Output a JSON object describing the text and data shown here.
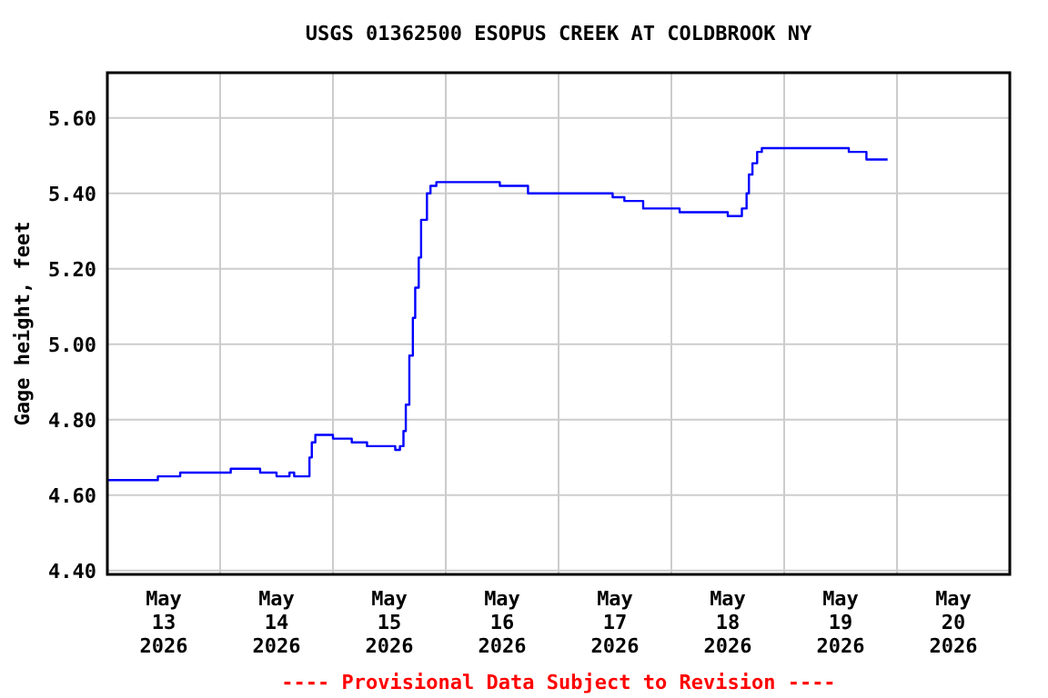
{
  "chart_data": {
    "type": "step",
    "title": "USGS 01362500 ESOPUS CREEK AT COLDBROOK NY",
    "ylabel": "Gage height, feet",
    "annotations": [
      "---- Provisional Data Subject to Revision ----"
    ],
    "x": [
      "2026-05-13T00:00",
      "2026-05-13T10:45",
      "2026-05-13T15:30",
      "2026-05-14T02:15",
      "2026-05-14T08:30",
      "2026-05-14T12:00",
      "2026-05-14T14:45",
      "2026-05-14T15:45",
      "2026-05-14T19:00",
      "2026-05-14T19:30",
      "2026-05-14T20:15",
      "2026-05-15T00:00",
      "2026-05-15T04:00",
      "2026-05-15T07:15",
      "2026-05-15T13:15",
      "2026-05-15T14:15",
      "2026-05-15T15:00",
      "2026-05-15T15:30",
      "2026-05-15T16:15",
      "2026-05-15T17:00",
      "2026-05-15T17:30",
      "2026-05-15T18:15",
      "2026-05-15T18:45",
      "2026-05-15T20:00",
      "2026-05-15T20:45",
      "2026-05-15T22:00",
      "2026-05-16T11:30",
      "2026-05-16T17:30",
      "2026-05-17T11:30",
      "2026-05-17T14:00",
      "2026-05-17T18:00",
      "2026-05-18T01:45",
      "2026-05-18T12:00",
      "2026-05-18T15:00",
      "2026-05-18T16:00",
      "2026-05-18T16:30",
      "2026-05-18T17:15",
      "2026-05-18T18:15",
      "2026-05-18T19:15",
      "2026-05-19T13:45",
      "2026-05-19T17:30",
      "2026-05-19T22:00"
    ],
    "series": [
      {
        "color": "#0000ff",
        "values": [
          4.64,
          4.65,
          4.66,
          4.67,
          4.66,
          4.65,
          4.66,
          4.65,
          4.7,
          4.74,
          4.76,
          4.75,
          4.74,
          4.73,
          4.72,
          4.73,
          4.77,
          4.84,
          4.97,
          5.07,
          5.15,
          5.23,
          5.33,
          5.4,
          5.42,
          5.43,
          5.42,
          5.4,
          5.39,
          5.38,
          5.36,
          5.35,
          5.34,
          5.36,
          5.4,
          5.45,
          5.48,
          5.51,
          5.52,
          5.51,
          5.49,
          5.49
        ]
      }
    ],
    "xlim": [
      "2026-05-13T00:00",
      "2026-05-21T00:00"
    ],
    "xticks": [
      {
        "value": "2026-05-13T00:00",
        "label": null
      },
      {
        "value": "2026-05-13T12:00",
        "label": "May 13 2026"
      },
      {
        "value": "2026-05-14T00:00",
        "label": null
      },
      {
        "value": "2026-05-14T12:00",
        "label": "May 14 2026"
      },
      {
        "value": "2026-05-15T00:00",
        "label": null
      },
      {
        "value": "2026-05-15T12:00",
        "label": "May 15 2026"
      },
      {
        "value": "2026-05-16T00:00",
        "label": null
      },
      {
        "value": "2026-05-16T12:00",
        "label": "May 16 2026"
      },
      {
        "value": "2026-05-17T00:00",
        "label": null
      },
      {
        "value": "2026-05-17T12:00",
        "label": "May 17 2026"
      },
      {
        "value": "2026-05-18T00:00",
        "label": null
      },
      {
        "value": "2026-05-18T12:00",
        "label": "May 18 2026"
      },
      {
        "value": "2026-05-19T00:00",
        "label": null
      },
      {
        "value": "2026-05-19T12:00",
        "label": "May 19 2026"
      },
      {
        "value": "2026-05-20T00:00",
        "label": null
      },
      {
        "value": "2026-05-20T12:00",
        "label": "May 20 2026"
      },
      {
        "value": "2026-05-21T00:00",
        "label": null
      }
    ],
    "ylim": [
      4.39,
      5.72
    ],
    "yticks": [
      {
        "value": 4.4,
        "label": "4.40"
      },
      {
        "value": 4.6,
        "label": "4.60"
      },
      {
        "value": 4.8,
        "label": "4.80"
      },
      {
        "value": 5.0,
        "label": "5.00"
      },
      {
        "value": 5.2,
        "label": "5.20"
      },
      {
        "value": 5.4,
        "label": "5.40"
      },
      {
        "value": 5.6,
        "label": "5.60"
      }
    ],
    "grid": true,
    "marker": "none",
    "line_style": "solid"
  }
}
